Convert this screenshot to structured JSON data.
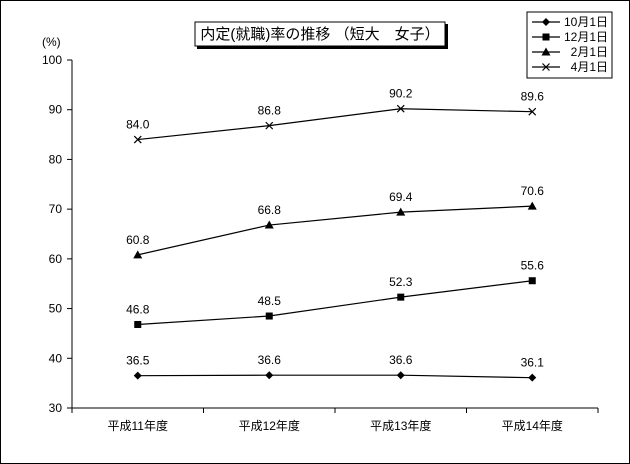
{
  "chart_data": {
    "type": "line",
    "title": "内定(就職)率の推移 （短大　女子）",
    "ylabel": "(%)",
    "xlabel": "",
    "ylim": [
      30,
      100
    ],
    "yticks": [
      30,
      40,
      50,
      60,
      70,
      80,
      90,
      100
    ],
    "categories": [
      "平成11年度",
      "平成12年度",
      "平成13年度",
      "平成14年度"
    ],
    "legend_position": "top-right",
    "grid": false,
    "series": [
      {
        "name": "10月1日",
        "marker": "diamond",
        "values": [
          36.5,
          36.6,
          36.6,
          36.1
        ],
        "labels": [
          "36.5",
          "36.6",
          "36.6",
          "36.1"
        ]
      },
      {
        "name": "12月1日",
        "marker": "square",
        "values": [
          46.8,
          48.5,
          52.3,
          55.6
        ],
        "labels": [
          "46.8",
          "48.5",
          "52.3",
          "55.6"
        ]
      },
      {
        "name": "2月1日",
        "marker": "triangle",
        "values": [
          60.8,
          66.8,
          69.4,
          70.6
        ],
        "labels": [
          "60.8",
          "66.8",
          "69.4",
          "70.6"
        ]
      },
      {
        "name": "4月1日",
        "marker": "x",
        "values": [
          84.0,
          86.8,
          90.2,
          89.6
        ],
        "labels": [
          "84.0",
          "86.8",
          "90.2",
          "89.6"
        ]
      }
    ]
  }
}
